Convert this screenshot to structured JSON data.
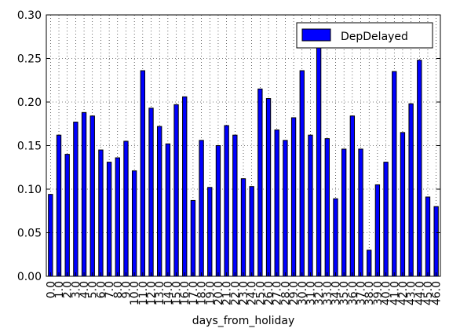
{
  "chart_data": {
    "type": "bar",
    "xlabel": "days_from_holiday",
    "ylabel": "",
    "ylim": [
      0,
      0.3
    ],
    "yticks": [
      "0.00",
      "0.05",
      "0.10",
      "0.15",
      "0.20",
      "0.25",
      "0.30"
    ],
    "grid": true,
    "legend_position": "top-right",
    "bar_color": "#0000ff",
    "categories": [
      "0.0",
      "1.0",
      "2.0",
      "3.0",
      "4.0",
      "5.0",
      "6.0",
      "7.0",
      "8.0",
      "9.0",
      "10.0",
      "11.0",
      "12.0",
      "13.0",
      "14.0",
      "15.0",
      "16.0",
      "17.0",
      "18.0",
      "19.0",
      "20.0",
      "21.0",
      "22.0",
      "23.0",
      "24.0",
      "25.0",
      "26.0",
      "27.0",
      "28.0",
      "29.0",
      "30.0",
      "31.0",
      "32.0",
      "33.0",
      "34.0",
      "35.0",
      "36.0",
      "37.0",
      "38.0",
      "39.0",
      "40.0",
      "41.0",
      "42.0",
      "43.0",
      "44.0",
      "45.0",
      "46.0"
    ],
    "series": [
      {
        "name": "DepDelayed",
        "values": [
          0.094,
          0.162,
          0.14,
          0.177,
          0.188,
          0.184,
          0.145,
          0.131,
          0.136,
          0.155,
          0.121,
          0.236,
          0.193,
          0.172,
          0.152,
          0.197,
          0.206,
          0.087,
          0.156,
          0.102,
          0.15,
          0.173,
          0.162,
          0.112,
          0.103,
          0.215,
          0.204,
          0.168,
          0.156,
          0.182,
          0.236,
          0.162,
          0.268,
          0.158,
          0.089,
          0.146,
          0.184,
          0.146,
          0.03,
          0.105,
          0.131,
          0.235,
          0.165,
          0.198,
          0.248,
          0.091,
          0.08
        ]
      }
    ]
  }
}
